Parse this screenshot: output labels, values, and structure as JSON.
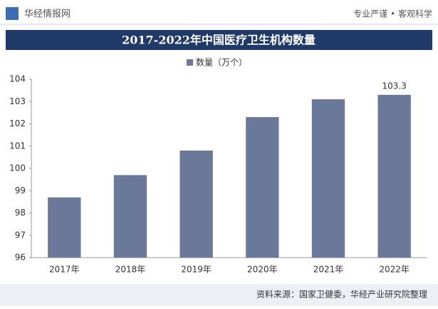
{
  "header": {
    "brand": "华经情报网",
    "slogan": "专业严谨 • 客观科学"
  },
  "chart_data": {
    "type": "bar",
    "title": "2017-2022年中国医疗卫生机构数量",
    "categories": [
      "2017年",
      "2018年",
      "2019年",
      "2020年",
      "2021年",
      "2022年"
    ],
    "series": [
      {
        "name": "数量（万个）",
        "color": "#6a7899",
        "values": [
          98.7,
          99.7,
          100.8,
          102.3,
          103.1,
          103.3
        ]
      }
    ],
    "value_labels": [
      null,
      null,
      null,
      null,
      null,
      "103.3"
    ],
    "ylim": [
      96,
      104
    ],
    "yticks": [
      96,
      97,
      98,
      99,
      100,
      101,
      102,
      103,
      104
    ]
  },
  "footer": {
    "source": "资料来源：国家卫健委，华经产业研究院整理"
  }
}
